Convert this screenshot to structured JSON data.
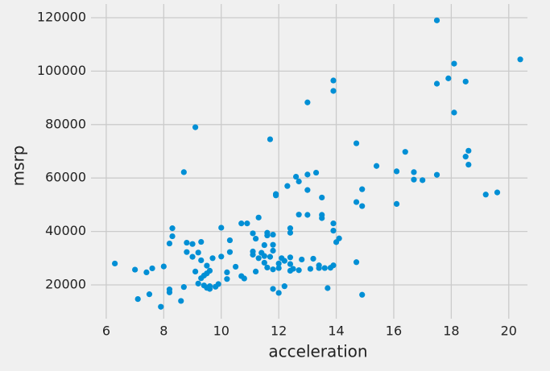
{
  "chart_data": {
    "type": "scatter",
    "xlabel": "acceleration",
    "ylabel": "msrp",
    "color": "#008fd5",
    "grid": true,
    "xlim": [
      5.47,
      20.65
    ],
    "ylim": [
      7350,
      125120
    ],
    "xticks": [
      6,
      8,
      10,
      12,
      14,
      16,
      18,
      20
    ],
    "yticks": [
      20000,
      40000,
      60000,
      80000,
      100000,
      120000
    ],
    "x": [
      6.3,
      7.0,
      7.1,
      7.4,
      7.5,
      7.6,
      7.9,
      8.0,
      8.2,
      8.2,
      8.2,
      8.3,
      8.3,
      8.6,
      8.7,
      8.7,
      8.8,
      8.8,
      9.0,
      9.0,
      9.1,
      9.1,
      9.2,
      9.2,
      9.3,
      9.3,
      9.3,
      9.4,
      9.4,
      9.5,
      9.5,
      9.5,
      9.6,
      9.6,
      9.6,
      9.7,
      9.8,
      9.9,
      10.0,
      10.0,
      10.2,
      10.2,
      10.3,
      10.3,
      10.5,
      10.7,
      10.7,
      10.8,
      10.9,
      11.1,
      11.1,
      11.1,
      11.2,
      11.2,
      11.3,
      11.3,
      11.4,
      11.5,
      11.5,
      11.5,
      11.6,
      11.6,
      11.6,
      11.7,
      11.7,
      11.8,
      11.8,
      11.8,
      11.8,
      11.8,
      11.9,
      11.9,
      12.0,
      12.0,
      12.0,
      12.1,
      12.2,
      12.2,
      12.3,
      12.4,
      12.4,
      12.4,
      12.4,
      12.4,
      12.5,
      12.6,
      12.7,
      12.7,
      12.7,
      12.8,
      13.0,
      13.0,
      13.0,
      13.0,
      13.1,
      13.2,
      13.3,
      13.4,
      13.4,
      13.5,
      13.5,
      13.5,
      13.6,
      13.7,
      13.8,
      13.9,
      13.9,
      13.9,
      13.9,
      13.9,
      14.0,
      14.1,
      14.7,
      14.7,
      14.7,
      14.9,
      14.9,
      14.9,
      15.4,
      16.1,
      16.1,
      16.4,
      16.7,
      16.7,
      17.0,
      17.5,
      17.5,
      17.5,
      17.9,
      18.1,
      18.1,
      18.5,
      18.5,
      18.6,
      18.6,
      19.2,
      19.6,
      20.4
    ],
    "values": [
      28000,
      25700,
      14700,
      24700,
      16500,
      26200,
      11800,
      26900,
      35500,
      18300,
      17200,
      38200,
      41200,
      14000,
      19200,
      62200,
      32300,
      35800,
      35300,
      30500,
      79000,
      25000,
      32100,
      20500,
      36100,
      29200,
      22500,
      19800,
      23500,
      18900,
      24300,
      27200,
      18500,
      19500,
      25300,
      30000,
      19300,
      20300,
      41400,
      30600,
      24700,
      22200,
      32300,
      36700,
      26800,
      43000,
      23300,
      22400,
      43000,
      39300,
      32500,
      31300,
      37300,
      25000,
      45200,
      30000,
      32000,
      28300,
      34900,
      30800,
      38500,
      39500,
      26500,
      74500,
      30500,
      38800,
      35000,
      32800,
      25800,
      18500,
      54000,
      53500,
      26300,
      28000,
      17000,
      30000,
      29000,
      19500,
      57000,
      41200,
      39500,
      27800,
      30300,
      25300,
      26000,
      60500,
      25500,
      46300,
      58700,
      29500,
      88300,
      61300,
      55500,
      46200,
      26000,
      29800,
      62000,
      27300,
      26300,
      46200,
      45000,
      52700,
      26300,
      18800,
      26400,
      96500,
      92600,
      43000,
      40300,
      27300,
      36000,
      37400,
      73000,
      51000,
      28500,
      55800,
      49500,
      16300,
      64500,
      62500,
      50300,
      69800,
      62200,
      59400,
      59200,
      119000,
      95300,
      61200,
      97300,
      102800,
      84500,
      96100,
      68000,
      65000,
      70200,
      53800,
      54600,
      104400
    ]
  }
}
